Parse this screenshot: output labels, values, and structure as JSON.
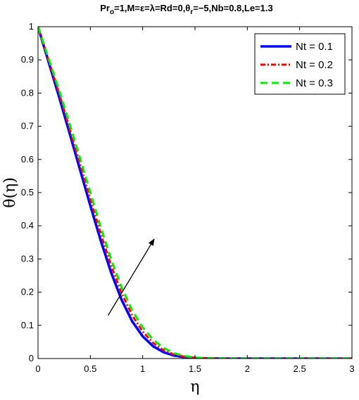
{
  "chart_data": {
    "type": "line",
    "title": "Pr_o=1,M=ε=λ=Rd=0,θ_r=−5,Nb=0.8,Le=1.3",
    "title_parts": {
      "a": "Pr",
      "a_sub": "o",
      "b": "=1,M=ε=λ=Rd=0,θ",
      "b_sub": "r",
      "c": "=−5,Nb=0.8,Le=1.3"
    },
    "xlabel": "η",
    "ylabel": "θ(η)",
    "xlim": [
      0,
      3
    ],
    "ylim": [
      0,
      1
    ],
    "xticks": [
      0,
      0.5,
      1,
      1.5,
      2,
      2.5,
      3
    ],
    "xtick_labels": [
      "0",
      "0.5",
      "1",
      "1.5",
      "2",
      "2.5",
      "3"
    ],
    "yticks": [
      0,
      0.1,
      0.2,
      0.3,
      0.4,
      0.5,
      0.6,
      0.7,
      0.8,
      0.9,
      1
    ],
    "ytick_labels": [
      "0",
      "0.1",
      "0.2",
      "0.3",
      "0.4",
      "0.5",
      "0.6",
      "0.7",
      "0.8",
      "0.9",
      "1"
    ],
    "grid": false,
    "legend_position": "top-right",
    "x": [
      0,
      0.1,
      0.2,
      0.3,
      0.4,
      0.5,
      0.6,
      0.7,
      0.8,
      0.9,
      1.0,
      1.1,
      1.2,
      1.3,
      1.4,
      1.5,
      1.6,
      1.7,
      1.8,
      1.9,
      2.0,
      2.2,
      2.4,
      2.6,
      2.8,
      3.0
    ],
    "series": [
      {
        "name": "Nt = 0.1",
        "color": "#0000ff",
        "style": "solid",
        "values": [
          1,
          0.895,
          0.79,
          0.681,
          0.571,
          0.461,
          0.355,
          0.258,
          0.176,
          0.112,
          0.067,
          0.037,
          0.019,
          0.009,
          0.004,
          0.0015,
          0.0005,
          0.0001,
          0,
          0,
          0,
          0,
          0,
          0,
          0,
          0
        ]
      },
      {
        "name": "Nt = 0.2",
        "color": "#ff0000",
        "style": "dashdot",
        "values": [
          1,
          0.9,
          0.8,
          0.695,
          0.588,
          0.48,
          0.375,
          0.279,
          0.196,
          0.13,
          0.081,
          0.047,
          0.025,
          0.012,
          0.0055,
          0.0022,
          0.0008,
          0.0002,
          0,
          0,
          0,
          0,
          0,
          0,
          0,
          0
        ]
      },
      {
        "name": "Nt = 0.3",
        "color": "#00ee00",
        "style": "dashed",
        "values": [
          1,
          0.905,
          0.81,
          0.709,
          0.605,
          0.5,
          0.395,
          0.298,
          0.214,
          0.145,
          0.094,
          0.057,
          0.032,
          0.016,
          0.0075,
          0.0032,
          0.0012,
          0.0004,
          0.0001,
          0,
          0,
          0,
          0,
          0,
          0,
          0
        ]
      }
    ],
    "annotation": {
      "type": "arrow",
      "meaning": "increasing Nt",
      "from": [
        0.67,
        0.13
      ],
      "to": [
        1.11,
        0.36
      ]
    }
  }
}
